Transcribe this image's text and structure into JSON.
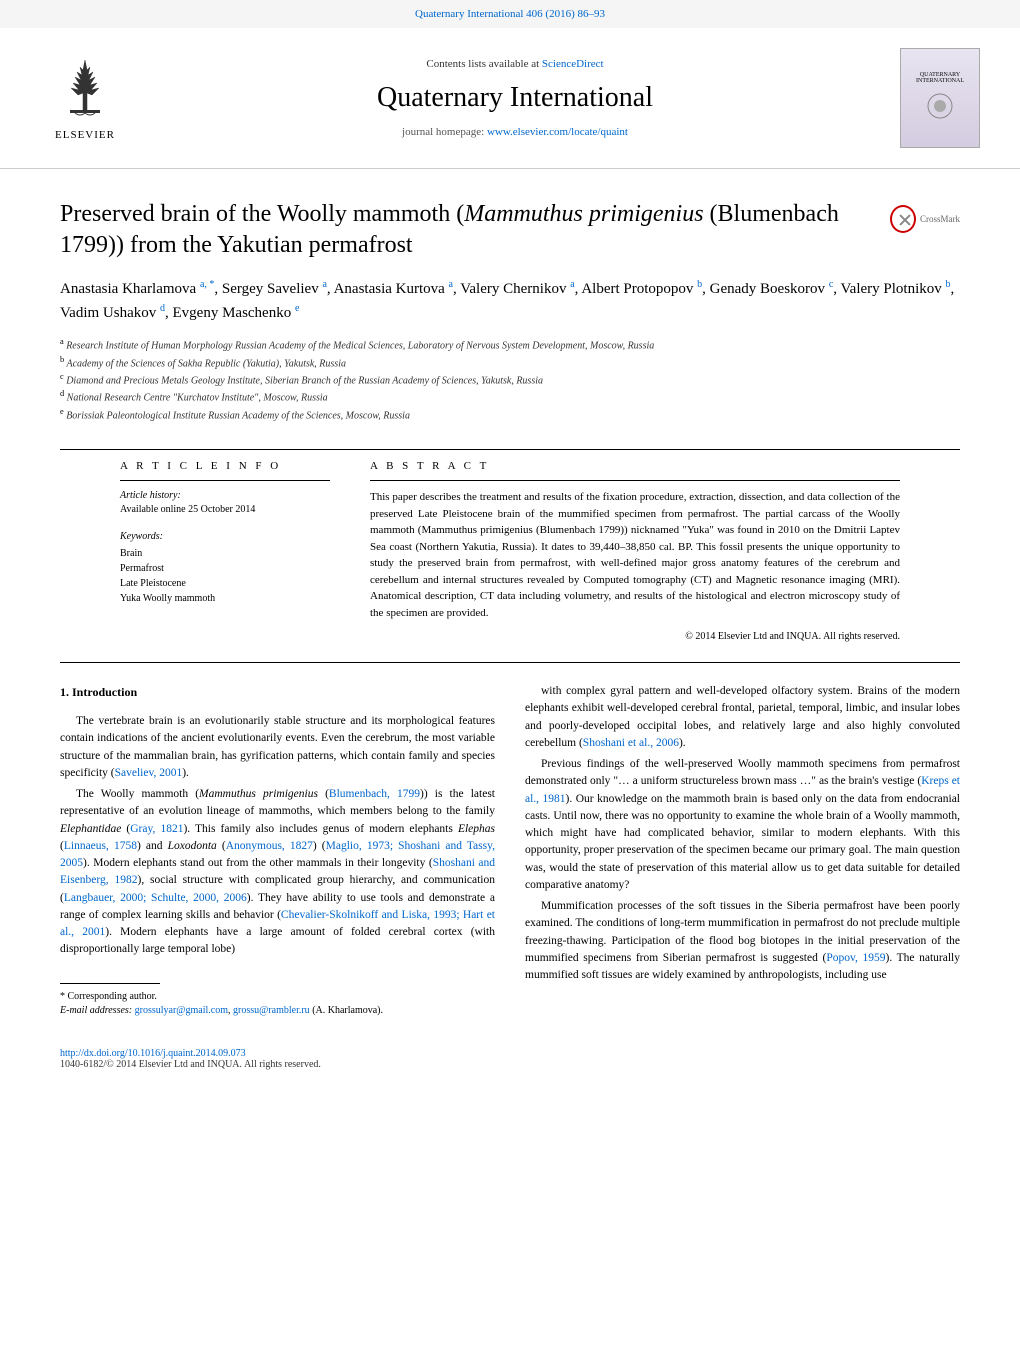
{
  "header": {
    "citation": "Quaternary International 406 (2016) 86–93"
  },
  "masthead": {
    "publisher": "ELSEVIER",
    "contents_label": "Contents lists available at ",
    "contents_link": "ScienceDirect",
    "journal_title": "Quaternary International",
    "homepage_label": "journal homepage: ",
    "homepage_url": "www.elsevier.com/locate/quaint"
  },
  "article": {
    "title_pre": "Preserved brain of the Woolly mammoth (",
    "title_species": "Mammuthus primigenius",
    "title_post": " (Blumenbach 1799)) from the Yakutian permafrost",
    "crossmark_label": "CrossMark",
    "authors_html": "Anastasia Kharlamova <sup>a, *</sup>, Sergey Saveliev <sup>a</sup>, Anastasia Kurtova <sup>a</sup>, Valery Chernikov <sup>a</sup>, Albert Protopopov <sup>b</sup>, Genady Boeskorov <sup>c</sup>, Valery Plotnikov <sup>b</sup>, Vadim Ushakov <sup>d</sup>, Evgeny Maschenko <sup>e</sup>",
    "affiliations": [
      {
        "key": "a",
        "text": "Research Institute of Human Morphology Russian Academy of the Medical Sciences, Laboratory of Nervous System Development, Moscow, Russia"
      },
      {
        "key": "b",
        "text": "Academy of the Sciences of Sakha Republic (Yakutia), Yakutsk, Russia"
      },
      {
        "key": "c",
        "text": "Diamond and Precious Metals Geology Institute, Siberian Branch of the Russian Academy of Sciences, Yakutsk, Russia"
      },
      {
        "key": "d",
        "text": "National Research Centre \"Kurchatov Institute\", Moscow, Russia"
      },
      {
        "key": "e",
        "text": "Borissiak Paleontological Institute Russian Academy of the Sciences, Moscow, Russia"
      }
    ]
  },
  "info": {
    "info_heading": "A R T I C L E   I N F O",
    "history_label": "Article history:",
    "history_text": "Available online 25 October 2014",
    "keywords_label": "Keywords:",
    "keywords": [
      "Brain",
      "Permafrost",
      "Late Pleistocene",
      "Yuka Woolly mammoth"
    ]
  },
  "abstract": {
    "heading": "A B S T R A C T",
    "text": "This paper describes the treatment and results of the fixation procedure, extraction, dissection, and data collection of the preserved Late Pleistocene brain of the mummified specimen from permafrost. The partial carcass of the Woolly mammoth (Mammuthus primigenius (Blumenbach 1799)) nicknamed \"Yuka\" was found in 2010 on the Dmitrii Laptev Sea coast (Northern Yakutia, Russia). It dates to 39,440–38,850 cal. BP. This fossil presents the unique opportunity to study the preserved brain from permafrost, with well-defined major gross anatomy features of the cerebrum and cerebellum and internal structures revealed by Computed tomography (CT) and Magnetic resonance imaging (MRI). Anatomical description, CT data including volumetry, and results of the histological and electron microscopy study of the specimen are provided.",
    "copyright": "© 2014 Elsevier Ltd and INQUA. All rights reserved."
  },
  "body": {
    "section_heading": "1. Introduction",
    "left_paragraphs": [
      "The vertebrate brain is an evolutionarily stable structure and its morphological features contain indications of the ancient evolutionarily events. Even the cerebrum, the most variable structure of the mammalian brain, has gyrification patterns, which contain family and species specificity (Saveliev, 2001).",
      "The Woolly mammoth (Mammuthus primigenius (Blumenbach, 1799)) is the latest representative of an evolution lineage of mammoths, which members belong to the family Elephantidae (Gray, 1821). This family also includes genus of modern elephants Elephas (Linnaeus, 1758) and Loxodonta (Anonymous, 1827) (Maglio, 1973; Shoshani and Tassy, 2005). Modern elephants stand out from the other mammals in their longevity (Shoshani and Eisenberg, 1982), social structure with complicated group hierarchy, and communication (Langbauer, 2000; Schulte, 2000, 2006). They have ability to use tools and demonstrate a range of complex learning skills and behavior (Chevalier-Skolnikoff and Liska, 1993; Hart et al., 2001). Modern elephants have a large amount of folded cerebral cortex (with disproportionally large temporal lobe)"
    ],
    "right_paragraphs": [
      "with complex gyral pattern and well-developed olfactory system. Brains of the modern elephants exhibit well-developed cerebral frontal, parietal, temporal, limbic, and insular lobes and poorly-developed occipital lobes, and relatively large and also highly convoluted cerebellum (Shoshani et al., 2006).",
      "Previous findings of the well-preserved Woolly mammoth specimens from permafrost demonstrated only \"… a uniform structureless brown mass …\" as the brain's vestige (Kreps et al., 1981). Our knowledge on the mammoth brain is based only on the data from endocranial casts. Until now, there was no opportunity to examine the whole brain of a Woolly mammoth, which might have had complicated behavior, similar to modern elephants. With this opportunity, proper preservation of the specimen became our primary goal. The main question was, would the state of preservation of this material allow us to get data suitable for detailed comparative anatomy?",
      "Mummification processes of the soft tissues in the Siberia permafrost have been poorly examined. The conditions of long-term mummification in permafrost do not preclude multiple freezing-thawing. Participation of the flood bog biotopes in the initial preservation of the mummified specimens from Siberian permafrost is suggested (Popov, 1959). The naturally mummified soft tissues are widely examined by anthropologists, including use"
    ]
  },
  "footnote": {
    "corr_label": "* Corresponding author.",
    "email_label": "E-mail addresses: ",
    "email1": "grossulyar@gmail.com",
    "email2": "grossu@rambler.ru",
    "email_suffix": " (A. Kharlamova)."
  },
  "footer": {
    "doi": "http://dx.doi.org/10.1016/j.quaint.2014.09.073",
    "issn_copyright": "1040-6182/© 2014 Elsevier Ltd and INQUA. All rights reserved."
  },
  "colors": {
    "link": "#0066cc",
    "text": "#000000",
    "muted": "#333333",
    "crossmark_ring": "#c00000"
  }
}
